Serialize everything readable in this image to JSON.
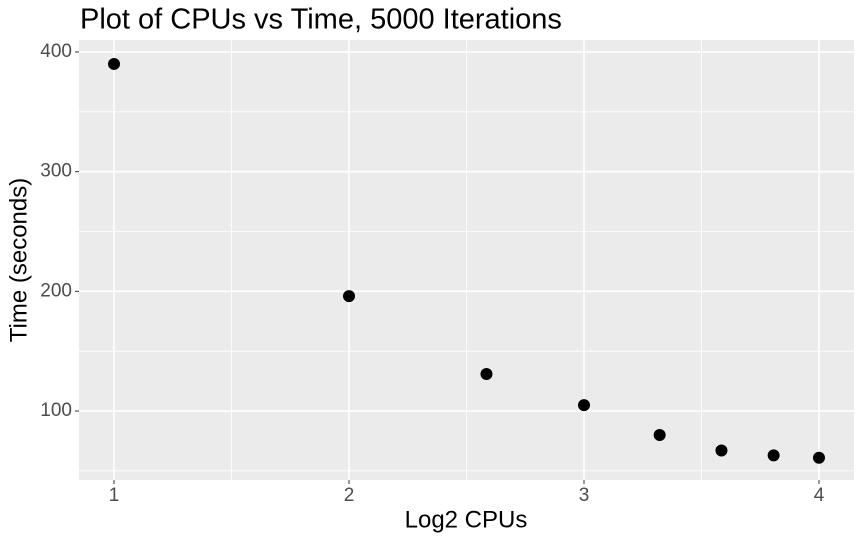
{
  "chart_data": {
    "type": "scatter",
    "title": "Plot of CPUs vs Time, 5000 Iterations",
    "x_label": "Log2 CPUs",
    "y_label": "Time (seconds)",
    "x": [
      1,
      2,
      2.585,
      3,
      3.322,
      3.585,
      3.807,
      4
    ],
    "values": [
      390,
      196,
      131,
      105,
      80,
      67,
      63,
      61
    ],
    "color": "#000000",
    "xlim": [
      0.851,
      4.149
    ],
    "ylim": [
      42.4,
      410
    ],
    "xticks": [
      1,
      2,
      3,
      4
    ],
    "yticks": [
      100,
      200,
      300,
      400
    ],
    "grid": true
  }
}
